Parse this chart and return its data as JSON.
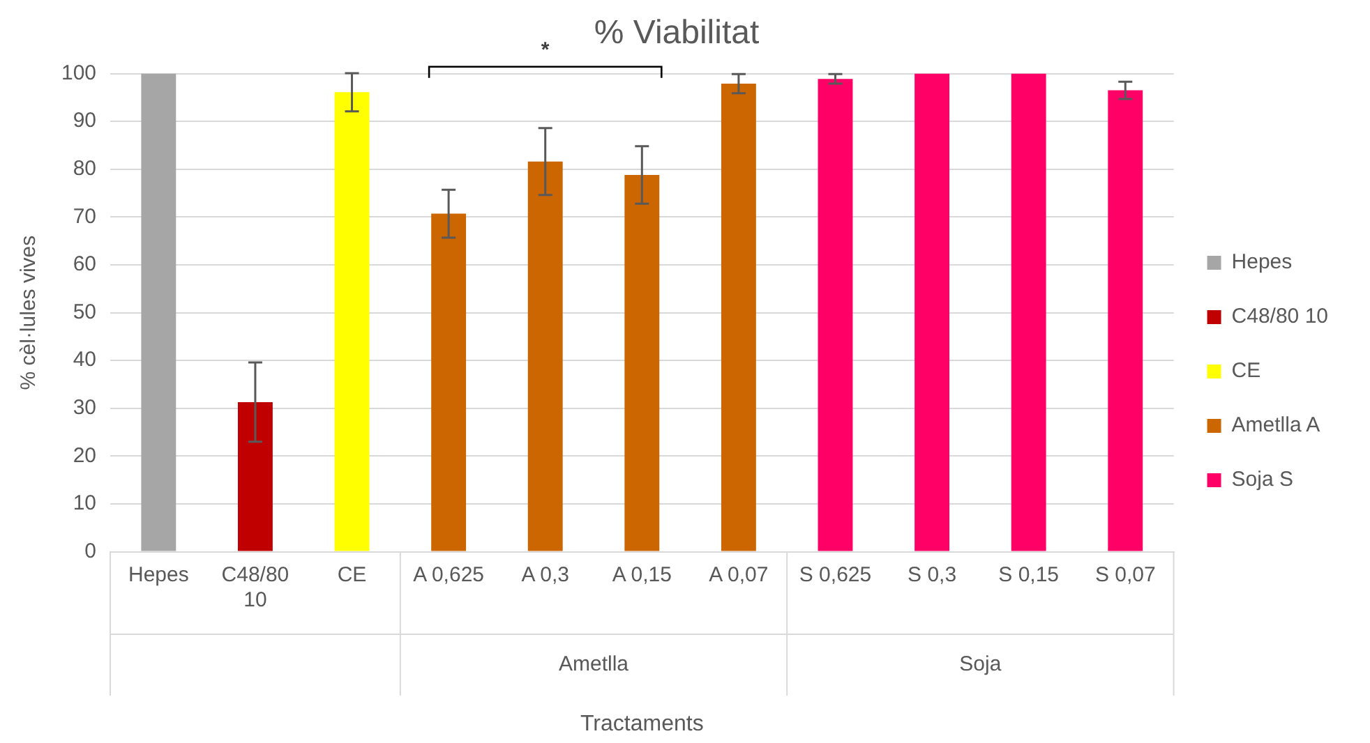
{
  "chart_data": {
    "type": "bar",
    "title": "% Viabilitat",
    "xlabel": "Tractaments",
    "ylabel": "% cèl·lules vives",
    "categories": [
      "Hepes",
      "C48/80 10",
      "CE",
      "A 0,625",
      "A 0,3",
      "A 0,15",
      "A 0,07",
      "S 0,625",
      "S 0,3",
      "S 0,15",
      "S 0,07"
    ],
    "series": [
      {
        "name": "Hepes",
        "color": "#a6a6a6",
        "values": [
          100,
          null,
          null,
          null,
          null,
          null,
          null,
          null,
          null,
          null,
          null
        ],
        "errors": [
          null,
          null,
          null,
          null,
          null,
          null,
          null,
          null,
          null,
          null,
          null
        ]
      },
      {
        "name": "C48/80 10",
        "color": "#c00000",
        "values": [
          null,
          31.3,
          null,
          null,
          null,
          null,
          null,
          null,
          null,
          null,
          null
        ],
        "errors": [
          null,
          8.3,
          null,
          null,
          null,
          null,
          null,
          null,
          null,
          null,
          null
        ]
      },
      {
        "name": "CE",
        "color": "#ffff00",
        "values": [
          null,
          null,
          96.1,
          null,
          null,
          null,
          null,
          null,
          null,
          null,
          null
        ],
        "errors": [
          null,
          null,
          4,
          null,
          null,
          null,
          null,
          null,
          null,
          null,
          null
        ]
      },
      {
        "name": "Ametlla A",
        "color": "#cc6600",
        "values": [
          null,
          null,
          null,
          70.7,
          81.6,
          78.8,
          97.9,
          null,
          null,
          null,
          null
        ],
        "errors": [
          null,
          null,
          null,
          5,
          7,
          6,
          2,
          null,
          null,
          null,
          null
        ]
      },
      {
        "name": "Soja S",
        "color": "#ff0066",
        "values": [
          null,
          null,
          null,
          null,
          null,
          null,
          null,
          98.9,
          100,
          100,
          96.5
        ],
        "errors": [
          null,
          null,
          null,
          null,
          null,
          null,
          null,
          1,
          null,
          null,
          1.8
        ]
      }
    ],
    "ylim": [
      0,
      100
    ],
    "yticks": [
      0,
      10,
      20,
      30,
      40,
      50,
      60,
      70,
      80,
      90,
      100
    ],
    "grid": "y",
    "legend": "right",
    "annotations": [
      "Ametlla",
      "Soja",
      "*"
    ]
  }
}
